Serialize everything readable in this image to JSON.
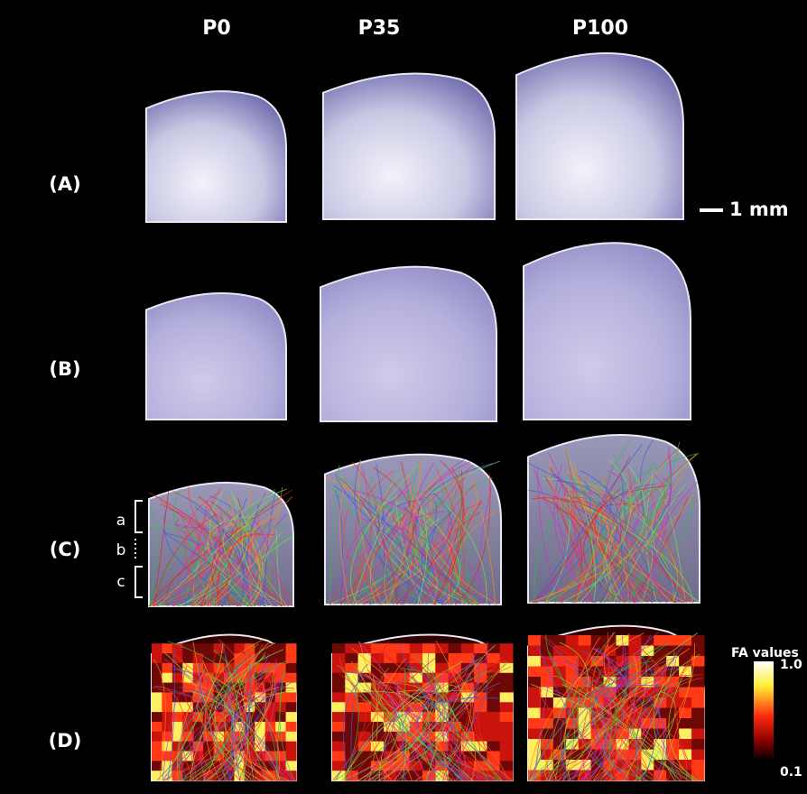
{
  "columns": [
    "P0",
    "P35",
    "P100"
  ],
  "rows": [
    "(A)",
    "(B)",
    "(C)",
    "(D)"
  ],
  "scale_bar": "1 mm",
  "regions": [
    "a",
    "b",
    "c"
  ],
  "colorbar": {
    "title": "FA values",
    "max": "1.0",
    "min": "0.1"
  }
}
